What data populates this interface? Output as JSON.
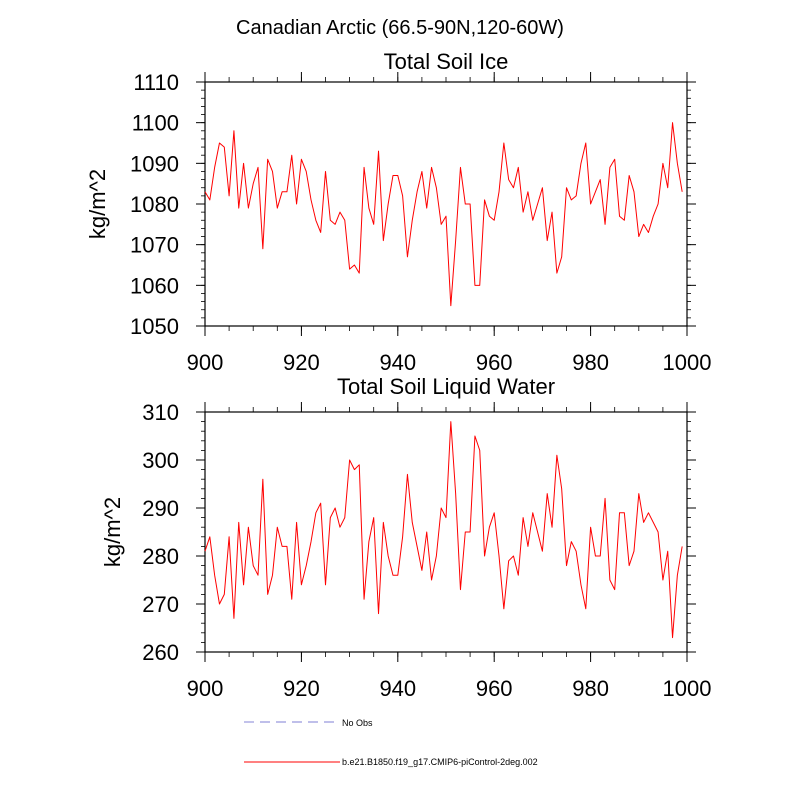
{
  "figure_title": "Canadian Arctic (66.5-90N,120-60W)",
  "legend": {
    "items": [
      {
        "label": "No Obs",
        "color": "#9999dd",
        "dash": true
      },
      {
        "label": "b.e21.B1850.f19_g17.CMIP6-piControl-2deg.002",
        "color": "#ff0000",
        "dash": false
      }
    ]
  },
  "chart_data": [
    {
      "type": "line",
      "title": "Total Soil Ice",
      "xlabel": "",
      "ylabel": "kg/m^2",
      "xlim": [
        900,
        1000
      ],
      "ylim": [
        1050,
        1110
      ],
      "xticks": [
        900,
        920,
        940,
        960,
        980,
        1000
      ],
      "yticks": [
        1050,
        1060,
        1070,
        1080,
        1090,
        1100,
        1110
      ],
      "series": [
        {
          "name": "b.e21.B1850.f19_g17.CMIP6-piControl-2deg.002",
          "color": "#ff0000",
          "x_start": 900,
          "x_step": 1,
          "values": [
            1083,
            1081,
            1089,
            1095,
            1094,
            1082,
            1098,
            1079,
            1090,
            1079,
            1085,
            1089,
            1069,
            1091,
            1088,
            1079,
            1083,
            1083,
            1092,
            1080,
            1091,
            1088,
            1081,
            1076,
            1073,
            1088,
            1076,
            1075,
            1078,
            1076,
            1064,
            1065,
            1063,
            1089,
            1079,
            1075,
            1093,
            1071,
            1080,
            1087,
            1087,
            1082,
            1067,
            1076,
            1083,
            1088,
            1079,
            1089,
            1084,
            1075,
            1077,
            1055,
            1071,
            1089,
            1080,
            1080,
            1060,
            1060,
            1081,
            1077,
            1076,
            1083,
            1095,
            1086,
            1084,
            1089,
            1078,
            1083,
            1076,
            1080,
            1084,
            1071,
            1078,
            1063,
            1067,
            1084,
            1081,
            1082,
            1090,
            1095,
            1080,
            1083,
            1086,
            1075,
            1089,
            1091,
            1077,
            1076,
            1087,
            1083,
            1072,
            1075,
            1073,
            1077,
            1080,
            1090,
            1084,
            1100,
            1090,
            1083
          ]
        }
      ]
    },
    {
      "type": "line",
      "title": "Total Soil Liquid Water",
      "xlabel": "",
      "ylabel": "kg/m^2",
      "xlim": [
        900,
        1000
      ],
      "ylim": [
        260,
        310
      ],
      "xticks": [
        900,
        920,
        940,
        960,
        980,
        1000
      ],
      "yticks": [
        260,
        270,
        280,
        290,
        300,
        310
      ],
      "series": [
        {
          "name": "b.e21.B1850.f19_g17.CMIP6-piControl-2deg.002",
          "color": "#ff0000",
          "x_start": 900,
          "x_step": 1,
          "values": [
            281,
            284,
            276,
            270,
            272,
            284,
            267,
            287,
            274,
            286,
            278,
            276,
            296,
            272,
            276,
            286,
            282,
            282,
            271,
            287,
            274,
            278,
            283,
            289,
            291,
            274,
            288,
            290,
            286,
            288,
            300,
            298,
            299,
            271,
            283,
            288,
            268,
            287,
            280,
            276,
            276,
            284,
            297,
            287,
            282,
            277,
            285,
            275,
            280,
            290,
            288,
            308,
            293,
            273,
            285,
            285,
            305,
            302,
            280,
            286,
            289,
            280,
            269,
            279,
            280,
            276,
            288,
            282,
            289,
            285,
            281,
            293,
            286,
            301,
            294,
            278,
            283,
            281,
            274,
            269,
            286,
            280,
            280,
            292,
            275,
            273,
            289,
            289,
            278,
            281,
            293,
            287,
            289,
            287,
            285,
            275,
            281,
            263,
            276,
            282
          ]
        }
      ]
    }
  ]
}
